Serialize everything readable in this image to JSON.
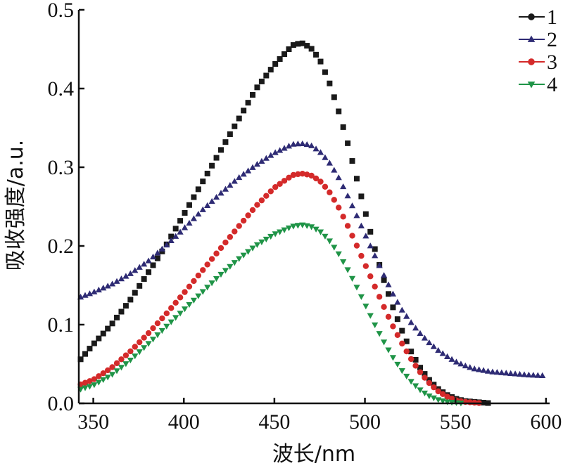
{
  "chart_data": {
    "type": "scatter",
    "xlabel": "波长/nm",
    "ylabel": "吸收强度/a.u.",
    "xlim": [
      342,
      602
    ],
    "ylim": [
      0.0,
      0.5
    ],
    "xticks": [
      350,
      400,
      450,
      500,
      550,
      600
    ],
    "yticks": [
      0.0,
      0.1,
      0.2,
      0.3,
      0.4,
      0.5
    ],
    "xtick_labels": [
      "350",
      "400",
      "450",
      "500",
      "550",
      "600"
    ],
    "ytick_labels": [
      "0.0",
      "0.1",
      "0.2",
      "0.3",
      "0.4",
      "0.5"
    ],
    "legend_position": "top-right",
    "grid": false,
    "series": [
      {
        "name": "1",
        "color": "#1a1a1a",
        "marker": "square",
        "legend_marker": "circle",
        "x": [
          343,
          350,
          360,
          370,
          380,
          390,
          400,
          410,
          420,
          430,
          440,
          450,
          460,
          465,
          470,
          475,
          480,
          485,
          490,
          495,
          500,
          505,
          510,
          515,
          520,
          525,
          530,
          535,
          540,
          545,
          550,
          555,
          560,
          565,
          570
        ],
        "y": [
          0.056,
          0.075,
          0.1,
          0.13,
          0.165,
          0.2,
          0.24,
          0.28,
          0.32,
          0.36,
          0.4,
          0.43,
          0.455,
          0.458,
          0.452,
          0.437,
          0.41,
          0.375,
          0.335,
          0.29,
          0.245,
          0.2,
          0.16,
          0.125,
          0.095,
          0.068,
          0.047,
          0.031,
          0.019,
          0.011,
          0.006,
          0.003,
          0.002,
          0.001,
          0.0
        ]
      },
      {
        "name": "2",
        "color": "#2e2b74",
        "marker": "triangle-up",
        "legend_marker": "triangle-up",
        "x": [
          343,
          350,
          360,
          370,
          380,
          390,
          400,
          410,
          420,
          430,
          440,
          450,
          460,
          465,
          470,
          475,
          480,
          485,
          490,
          495,
          500,
          505,
          510,
          515,
          520,
          525,
          530,
          535,
          540,
          545,
          550,
          555,
          560,
          570,
          580,
          590,
          600
        ],
        "y": [
          0.135,
          0.141,
          0.151,
          0.164,
          0.18,
          0.2,
          0.222,
          0.245,
          0.266,
          0.286,
          0.303,
          0.318,
          0.329,
          0.33,
          0.328,
          0.32,
          0.307,
          0.289,
          0.266,
          0.241,
          0.215,
          0.19,
          0.165,
          0.141,
          0.12,
          0.104,
          0.09,
          0.078,
          0.068,
          0.06,
          0.053,
          0.048,
          0.044,
          0.04,
          0.038,
          0.036,
          0.035
        ]
      },
      {
        "name": "3",
        "color": "#d42a2a",
        "marker": "circle",
        "legend_marker": "circle",
        "x": [
          343,
          350,
          360,
          370,
          380,
          390,
          400,
          410,
          420,
          430,
          440,
          450,
          460,
          465,
          470,
          475,
          480,
          485,
          490,
          495,
          500,
          505,
          510,
          515,
          520,
          525,
          530,
          535,
          540,
          545,
          550,
          555,
          560,
          565
        ],
        "y": [
          0.024,
          0.03,
          0.045,
          0.065,
          0.088,
          0.113,
          0.14,
          0.168,
          0.196,
          0.224,
          0.251,
          0.274,
          0.29,
          0.292,
          0.29,
          0.283,
          0.27,
          0.251,
          0.228,
          0.203,
          0.177,
          0.151,
          0.125,
          0.1,
          0.078,
          0.058,
          0.041,
          0.027,
          0.016,
          0.009,
          0.004,
          0.002,
          0.001,
          0.0
        ]
      },
      {
        "name": "4",
        "color": "#1f9447",
        "marker": "triangle-down",
        "legend_marker": "triangle-down",
        "x": [
          343,
          350,
          360,
          370,
          380,
          390,
          400,
          410,
          420,
          430,
          440,
          450,
          460,
          465,
          470,
          475,
          480,
          485,
          490,
          495,
          500,
          505,
          510,
          515,
          520,
          525,
          530,
          535,
          540,
          545,
          550,
          555
        ],
        "y": [
          0.018,
          0.023,
          0.036,
          0.054,
          0.075,
          0.097,
          0.119,
          0.141,
          0.163,
          0.183,
          0.201,
          0.215,
          0.225,
          0.227,
          0.225,
          0.219,
          0.208,
          0.192,
          0.172,
          0.15,
          0.126,
          0.102,
          0.08,
          0.06,
          0.043,
          0.029,
          0.018,
          0.01,
          0.005,
          0.002,
          0.001,
          0.0
        ]
      }
    ]
  }
}
